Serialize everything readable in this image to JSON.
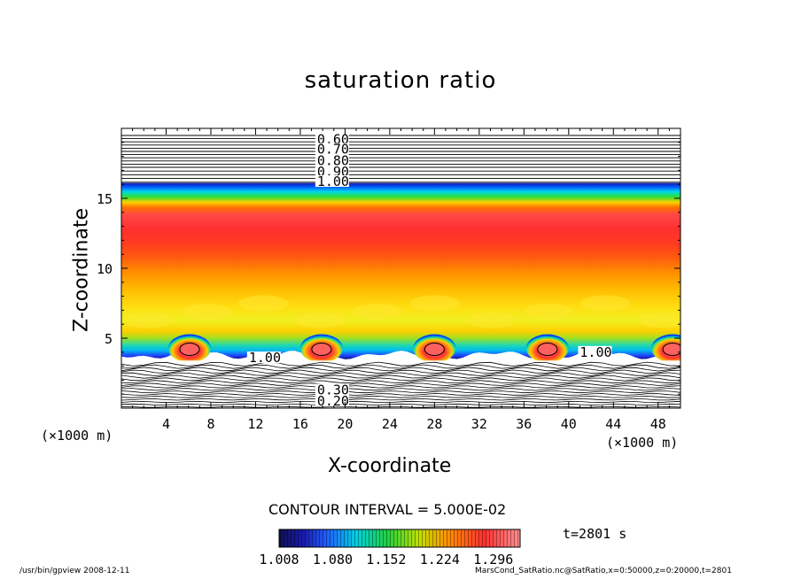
{
  "title": "saturation ratio",
  "chart_data": {
    "type": "heatmap",
    "title": "saturation ratio",
    "xlabel": "X-coordinate",
    "ylabel": "Z-coordinate",
    "x_unit_label": "(×1000 m)",
    "xlim": [
      0,
      50
    ],
    "ylim": [
      0,
      20
    ],
    "x_ticks": [
      "4",
      "8",
      "12",
      "16",
      "20",
      "24",
      "28",
      "32",
      "36",
      "40",
      "44",
      "48"
    ],
    "x_tick_values": [
      4,
      8,
      12,
      16,
      20,
      24,
      28,
      32,
      36,
      40,
      44,
      48
    ],
    "y_ticks": [
      "5",
      "10",
      "15"
    ],
    "y_tick_values": [
      5,
      10,
      15
    ],
    "contour_labels": [
      {
        "text": "0.60",
        "x": 17.5,
        "y": 19.2
      },
      {
        "text": "0.70",
        "x": 17.5,
        "y": 18.5
      },
      {
        "text": "0.80",
        "x": 17.5,
        "y": 17.7
      },
      {
        "text": "0.90",
        "x": 17.5,
        "y": 16.9
      },
      {
        "text": "1.00",
        "x": 17.5,
        "y": 16.2
      },
      {
        "text": "1.00",
        "x": 11.4,
        "y": 3.6
      },
      {
        "text": "1.00",
        "x": 41.0,
        "y": 4.0
      },
      {
        "text": "0.30",
        "x": 17.5,
        "y": 1.3
      },
      {
        "text": "0.20",
        "x": 17.5,
        "y": 0.5
      }
    ],
    "warm_cores_x": [
      6.1,
      17.9,
      28.0,
      38.1,
      49.3
    ],
    "colorbar": {
      "tick_labels": [
        "1.008",
        "1.080",
        "1.152",
        "1.224",
        "1.296"
      ],
      "min": 1.008,
      "max": 1.332
    },
    "contour_interval_text": "CONTOUR INTERVAL = 5.000E-02",
    "legend": "colorbar bottom-center"
  },
  "time_label": "t=2801 s",
  "footer": {
    "left": "/usr/bin/gpview   2008-12-11",
    "right": "MarsCond_SatRatio.nc@SatRatio,x=0:50000,z=0:20000,t=2801"
  },
  "colors": {
    "background": "#ffffff",
    "contour_line": "#000000",
    "high": "#ff3a3a",
    "mid": "#ffe000",
    "low": "#00e0e0",
    "lowest": "#1010a0"
  }
}
